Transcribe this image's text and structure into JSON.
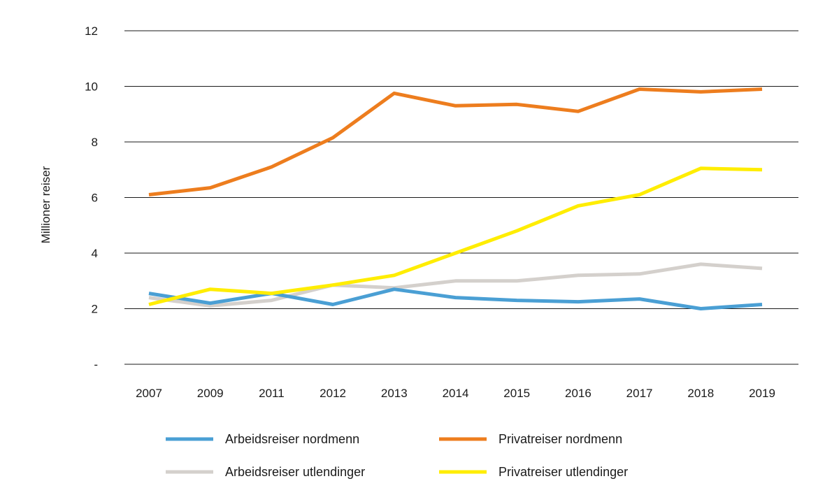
{
  "chart_data": {
    "type": "line",
    "title": "",
    "xlabel": "",
    "ylabel": "Millioner reiser",
    "ylim": [
      0,
      12
    ],
    "yticks": [
      {
        "value": 0,
        "label": "-"
      },
      {
        "value": 2,
        "label": "2"
      },
      {
        "value": 4,
        "label": "4"
      },
      {
        "value": 6,
        "label": "6"
      },
      {
        "value": 8,
        "label": "8"
      },
      {
        "value": 10,
        "label": "10"
      },
      {
        "value": 12,
        "label": "12"
      }
    ],
    "categories": [
      "2007",
      "2009",
      "2011",
      "2012",
      "2013",
      "2014",
      "2015",
      "2016",
      "2017",
      "2018",
      "2019"
    ],
    "grid": true,
    "legend_position": "bottom",
    "series": [
      {
        "name": "Arbeidsreiser nordmenn",
        "color": "#4a9fd4",
        "values": [
          2.55,
          2.2,
          2.55,
          2.15,
          2.7,
          2.4,
          2.3,
          2.25,
          2.35,
          2.0,
          2.15
        ]
      },
      {
        "name": "Privatreiser nordmenn",
        "color": "#ed7d1e",
        "values": [
          6.1,
          6.35,
          7.1,
          8.15,
          9.75,
          9.3,
          9.35,
          9.1,
          9.9,
          9.8,
          9.9
        ]
      },
      {
        "name": "Arbeidsreiser utlendinger",
        "color": "#d4d0cc",
        "values": [
          2.4,
          2.1,
          2.3,
          2.85,
          2.75,
          3.0,
          3.0,
          3.2,
          3.25,
          3.6,
          3.45
        ]
      },
      {
        "name": "Privatreiser utlendinger",
        "color": "#ffed00",
        "values": [
          2.15,
          2.7,
          2.55,
          2.85,
          3.2,
          4.0,
          4.8,
          5.7,
          6.1,
          7.05,
          7.0
        ]
      }
    ]
  }
}
